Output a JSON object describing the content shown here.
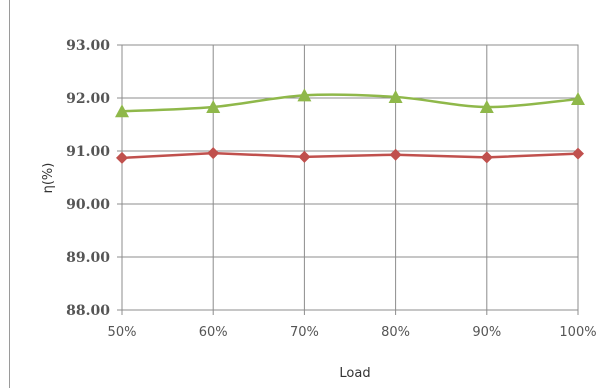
{
  "chart_data": {
    "type": "line",
    "title": "",
    "xlabel": "Load",
    "ylabel": "η(%)",
    "categories": [
      "50%",
      "60%",
      "70%",
      "80%",
      "90%",
      "100%"
    ],
    "ylim": [
      88,
      93
    ],
    "yticks": [
      "88.00",
      "89.00",
      "90.00",
      "91.00",
      "92.00",
      "93.00"
    ],
    "grid": true,
    "legend": "none",
    "series": [
      {
        "values": [
          91.75,
          91.83,
          92.05,
          92.02,
          91.83,
          91.98
        ],
        "color": "#8fb84a",
        "marker": "triangle",
        "smooth": true
      },
      {
        "values": [
          90.87,
          90.96,
          90.89,
          90.93,
          90.88,
          90.95
        ],
        "color": "#c0504d",
        "marker": "diamond",
        "smooth": false
      }
    ]
  }
}
